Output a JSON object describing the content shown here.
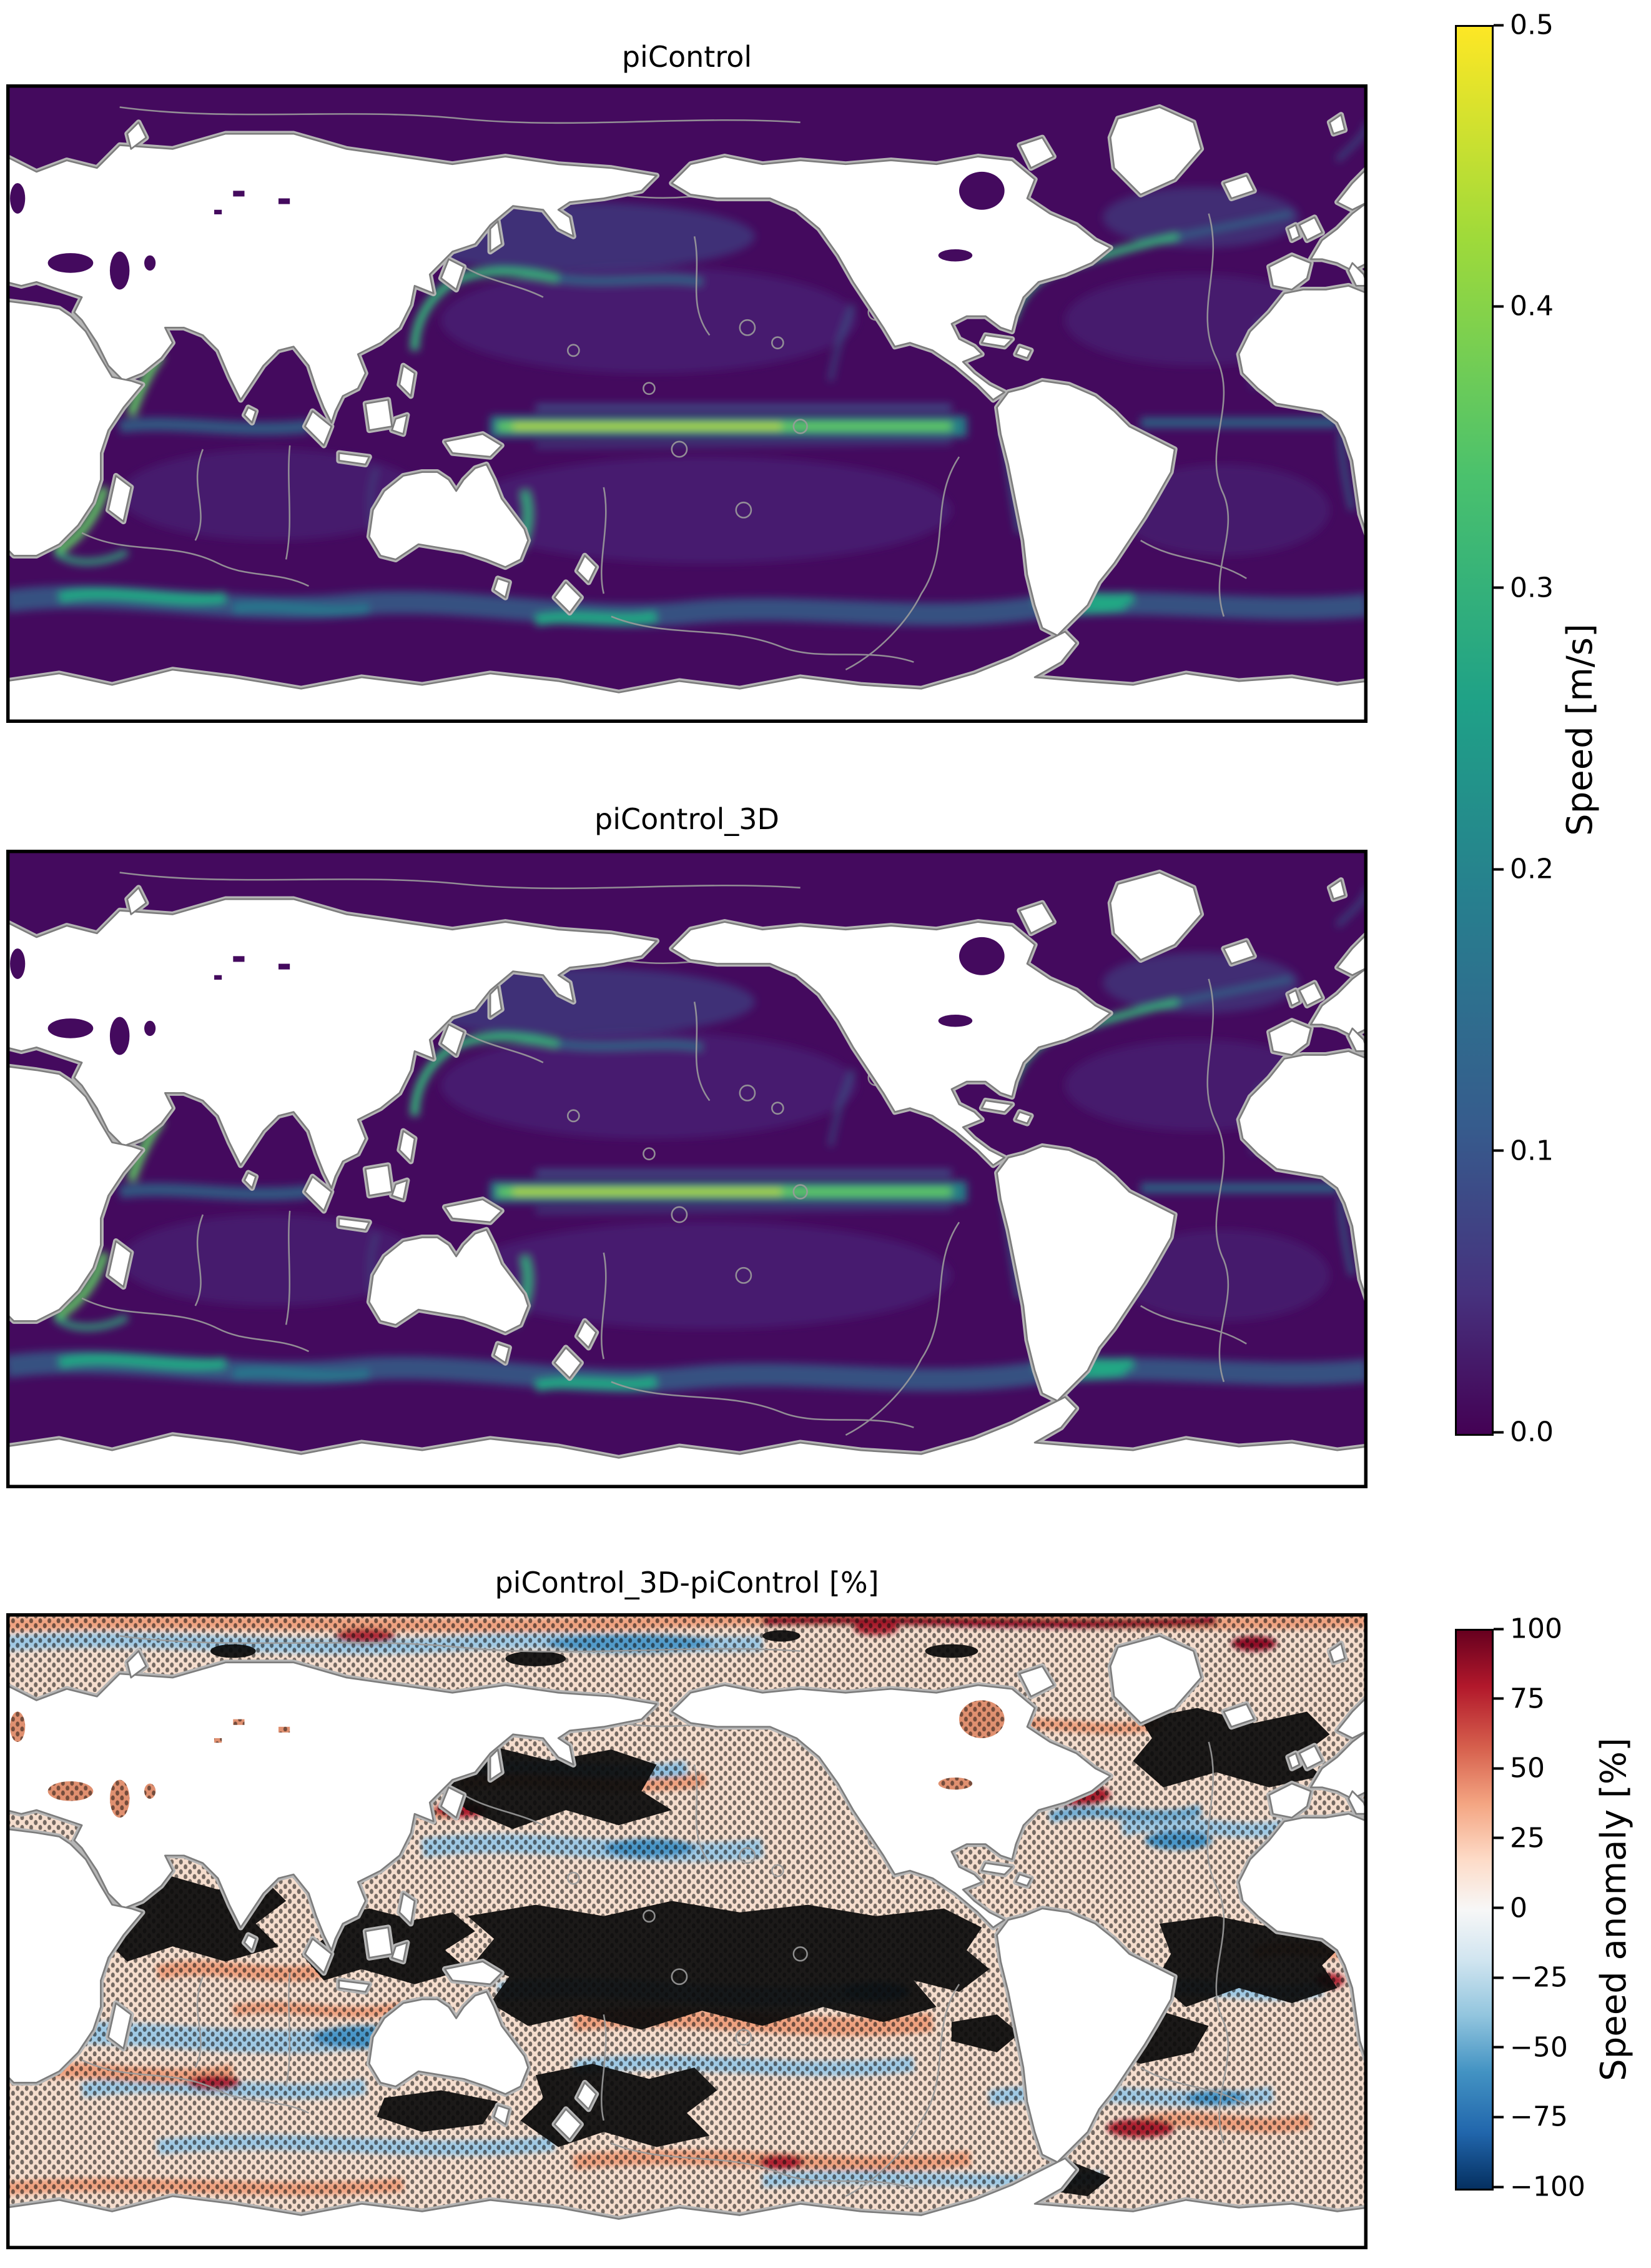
{
  "figure": {
    "panels": [
      {
        "title": "piControl"
      },
      {
        "title": "piControl_3D"
      },
      {
        "title": "piControl_3D-piControl [%]"
      }
    ],
    "colorbars": [
      {
        "id": "speed",
        "label": "Speed [m/s]",
        "ticks": [
          "0.5",
          "0.4",
          "0.3",
          "0.2",
          "0.1",
          "0.0"
        ],
        "colormap": "viridis",
        "stops": [
          "#fde725",
          "#5ec962",
          "#21918c",
          "#3b528b",
          "#440154"
        ]
      },
      {
        "id": "anom",
        "label": "Speed anomaly [%]",
        "ticks": [
          "100",
          "75",
          "50",
          "25",
          "0",
          "−25",
          "−50",
          "−75",
          "−100"
        ],
        "colormap": "RdBu_r",
        "stops": [
          "#67001f",
          "#b2182b",
          "#d6604d",
          "#f4a582",
          "#fddbc7",
          "#f7f7f7",
          "#d1e5f0",
          "#92c5de",
          "#4393c3",
          "#2166ac",
          "#053061"
        ]
      }
    ]
  },
  "chart_data": [
    {
      "type": "heatmap",
      "title": "piControl",
      "variable": "ocean surface current speed",
      "units": "m/s",
      "region": "global ocean, Pacific-centered world map",
      "colormap": "viridis",
      "value_range": [
        0.0,
        0.5
      ],
      "colorbar_label": "Speed [m/s]",
      "colorbar_ticks": [
        0.0,
        0.1,
        0.2,
        0.3,
        0.4,
        0.5
      ],
      "background_values": "most open ocean near 0.0-0.05 m/s (dark purple)",
      "notable_features": [
        "bright equatorial Pacific jet reaching ~0.4-0.5 m/s",
        "western boundary currents (Kuroshio, Gulf Stream, Somali, Agulhas, East Australian, Brazil) ~0.2-0.4 m/s",
        "Antarctic Circumpolar Current band ~0.1-0.3 m/s",
        "gray bathymetry contour lines over oceans",
        "land masked white with gray coastlines"
      ]
    },
    {
      "type": "heatmap",
      "title": "piControl_3D",
      "variable": "ocean surface current speed",
      "units": "m/s",
      "region": "global ocean, Pacific-centered world map",
      "colormap": "viridis",
      "value_range": [
        0.0,
        0.5
      ],
      "colorbar_label": "Speed [m/s]",
      "colorbar_ticks": [
        0.0,
        0.1,
        0.2,
        0.3,
        0.4,
        0.5
      ],
      "background_values": "most open ocean near 0.0-0.05 m/s (dark purple)",
      "notable_features": [
        "nearly identical pattern to piControl",
        "equatorial Pacific jet ~0.4-0.5 m/s",
        "same boundary currents and ACC structure"
      ]
    },
    {
      "type": "heatmap",
      "title": "piControl_3D-piControl [%]",
      "variable": "relative speed difference (piControl_3D minus piControl)",
      "units": "%",
      "region": "global ocean, Pacific-centered world map",
      "colormap": "RdBu_r",
      "value_range": [
        -100,
        100
      ],
      "colorbar_label": "Speed anomaly [%]",
      "colorbar_ticks": [
        -100,
        -75,
        -50,
        -25,
        0,
        25,
        50,
        75,
        100
      ],
      "overlay": "dense black stippling (significance dots) covering much of the ocean, near-solid black over the tropical Pacific, tropical Atlantic and western Indian Ocean",
      "notable_features": [
        "alternating zonal red (positive) and blue (negative) anomaly streaks",
        "strong positive (dark red) anomalies along Gulf Stream, Kuroshio and Arctic margin",
        "broad weak negative (light blue) bands in subtropical gyres and Southern Ocean",
        "anomalies mostly within ±50%"
      ]
    }
  ]
}
